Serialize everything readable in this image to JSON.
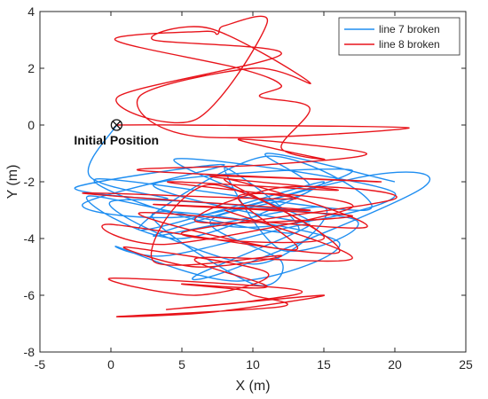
{
  "chart_data": {
    "type": "line",
    "xlabel": "X (m)",
    "ylabel": "Y (m)",
    "xlim": [
      -5,
      25
    ],
    "ylim": [
      -8,
      4
    ],
    "xticks": [
      -5,
      0,
      5,
      10,
      15,
      20,
      25
    ],
    "yticks": [
      -8,
      -6,
      -4,
      -2,
      0,
      2,
      4
    ],
    "grid": false,
    "legend_position": "top-right",
    "annotations": [
      {
        "label": "Initial Position",
        "x": 0.4,
        "y": 0,
        "marker": "circle-x"
      }
    ],
    "series": [
      {
        "name": "line 7 broken",
        "color": "#1f8ef1",
        "x": [
          0.4,
          -1.5,
          4,
          -2.5,
          8,
          -2,
          6,
          17,
          3,
          14,
          4.5,
          20,
          9,
          -1,
          18,
          11,
          2,
          15,
          5,
          -1.5,
          13,
          8,
          12,
          17,
          0,
          10,
          15,
          3,
          18,
          22,
          9,
          6,
          14,
          4,
          0.5,
          9,
          16,
          3,
          10,
          12,
          7,
          14,
          11,
          20
        ],
        "y": [
          0,
          -1.8,
          -2.6,
          -2.2,
          -1.4,
          -2.8,
          -3.2,
          -1.6,
          -2.1,
          -3.4,
          -1.2,
          -2.4,
          -3.6,
          -1.9,
          -3.0,
          -1.1,
          -3.7,
          -2.0,
          -4.0,
          -2.5,
          -3.8,
          -1.5,
          -4.4,
          -3.3,
          -2.7,
          -4.9,
          -2.9,
          -3.9,
          -1.8,
          -2.2,
          -5.0,
          -5.3,
          -3.5,
          -4.6,
          -4.3,
          -5.5,
          -4.1,
          -3.1,
          -5.6,
          -4.8,
          -3.4,
          -2.3,
          -1.0,
          -2.0
        ]
      },
      {
        "name": "line 8 broken",
        "color": "#e8141b",
        "x": [
          0.4,
          5,
          21,
          6,
          2,
          10,
          14,
          7,
          3,
          12,
          0.5,
          6,
          11,
          8,
          7.5,
          6.5,
          0.3,
          9,
          12,
          10.5,
          14,
          12,
          15,
          9,
          18,
          11,
          2,
          19,
          7,
          16,
          4,
          13,
          -2,
          14,
          3,
          17,
          6,
          12,
          20,
          5,
          15,
          8,
          18,
          2,
          13,
          9,
          17,
          4,
          0,
          16,
          7,
          3,
          12,
          6,
          1,
          11,
          6,
          0,
          13,
          10,
          4,
          15,
          7,
          0.5,
          12,
          10,
          9,
          5,
          11,
          6,
          17,
          8
        ],
        "y": [
          0,
          0,
          -0.1,
          -0.4,
          1.0,
          2.0,
          1.5,
          3.4,
          3.0,
          2.5,
          1.0,
          0.2,
          3.6,
          3.5,
          3.2,
          3.3,
          3.0,
          2.0,
          1.4,
          1.0,
          0.6,
          -0.8,
          -1.2,
          -0.5,
          -1.0,
          -1.4,
          -1.6,
          -2.0,
          -1.8,
          -2.3,
          -2.0,
          -2.6,
          -2.4,
          -3.0,
          -2.8,
          -3.2,
          -3.4,
          -2.2,
          -2.6,
          -3.8,
          -4.0,
          -1.9,
          -3.6,
          -3.1,
          -4.4,
          -2.5,
          -2.9,
          -4.2,
          -3.5,
          -4.5,
          -2.1,
          -4.8,
          -4.6,
          -5.0,
          -4.3,
          -5.2,
          -6.0,
          -5.4,
          -5.8,
          -6.2,
          -6.5,
          -6.0,
          -6.6,
          -6.75,
          -6.4,
          -6.0,
          -5.8,
          -5.6,
          -5.7,
          -4.7,
          -4.7,
          -3.0
        ]
      }
    ]
  }
}
